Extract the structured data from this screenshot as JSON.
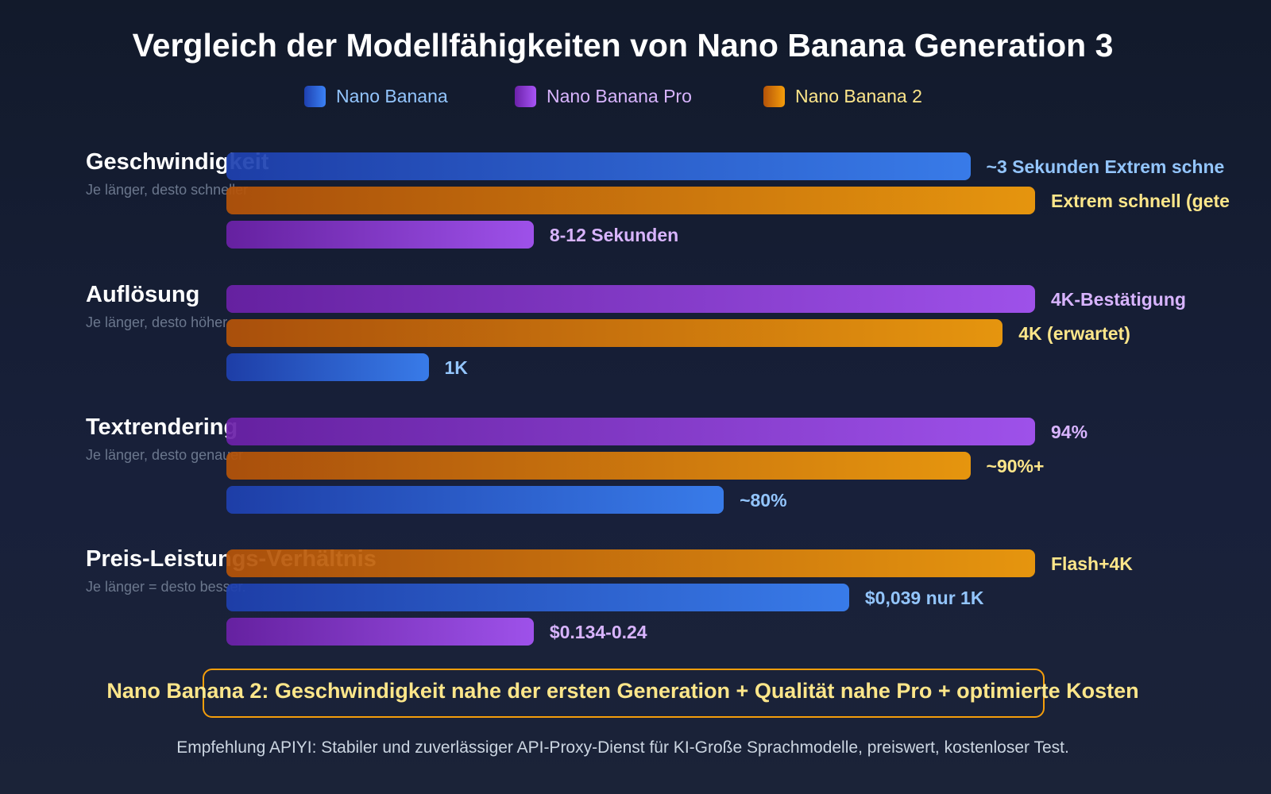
{
  "chart_data": {
    "type": "bar",
    "orientation": "horizontal",
    "title": "Vergleich der Modellfähigkeiten von Nano Banana Generation 3",
    "legend": {
      "placement": "top",
      "entries": [
        {
          "name": "Nano Banana",
          "color": "#3b82f6",
          "text_color": "#93c5fd"
        },
        {
          "name": "Nano Banana Pro",
          "color": "#a855f7",
          "text_color": "#d8b4fe"
        },
        {
          "name": "Nano Banana 2",
          "color": "#f59e0b",
          "text_color": "#fde68a"
        }
      ]
    },
    "grid": false,
    "value_scale": "relative length, 0-100",
    "categories": [
      {
        "label": "Geschwindigkeit",
        "sublabel": "Je länger, desto schneller",
        "bars": [
          {
            "series": "Nano Banana",
            "value": 92,
            "label": "~3 Sekunden Extrem schne"
          },
          {
            "series": "Nano Banana 2",
            "value": 100,
            "label": "Extrem schnell (gete"
          },
          {
            "series": "Nano Banana Pro",
            "value": 38,
            "label": "8-12 Sekunden"
          }
        ]
      },
      {
        "label": "Auflösung",
        "sublabel": "Je länger, desto höher",
        "bars": [
          {
            "series": "Nano Banana Pro",
            "value": 100,
            "label": "4K-Bestätigung"
          },
          {
            "series": "Nano Banana 2",
            "value": 96,
            "label": "4K (erwartet)"
          },
          {
            "series": "Nano Banana",
            "value": 25,
            "label": "1K"
          }
        ]
      },
      {
        "label": "Textrendering",
        "sublabel": "Je länger, desto genauer",
        "bars": [
          {
            "series": "Nano Banana Pro",
            "value": 100,
            "label": "94%"
          },
          {
            "series": "Nano Banana 2",
            "value": 92,
            "label": "~90%+"
          },
          {
            "series": "Nano Banana",
            "value": 61.5,
            "label": "~80%"
          }
        ]
      },
      {
        "label": "Preis-Leistungs-Verhältnis",
        "sublabel": "Je länger = desto besser.",
        "bars": [
          {
            "series": "Nano Banana 2",
            "value": 100,
            "label": "Flash+4K"
          },
          {
            "series": "Nano Banana",
            "value": 77,
            "label": "$0,039 nur 1K"
          },
          {
            "series": "Nano Banana Pro",
            "value": 38,
            "label": "$0.134-0.24"
          }
        ]
      }
    ]
  },
  "callout": "Nano Banana 2: Geschwindigkeit nahe der ersten Generation + Qualität nahe Pro + optimierte Kosten",
  "footer": "Empfehlung APIYI: Stabiler und zuverlässiger API-Proxy-Dienst für KI-Große Sprachmodelle, preiswert, kostenloser Test."
}
